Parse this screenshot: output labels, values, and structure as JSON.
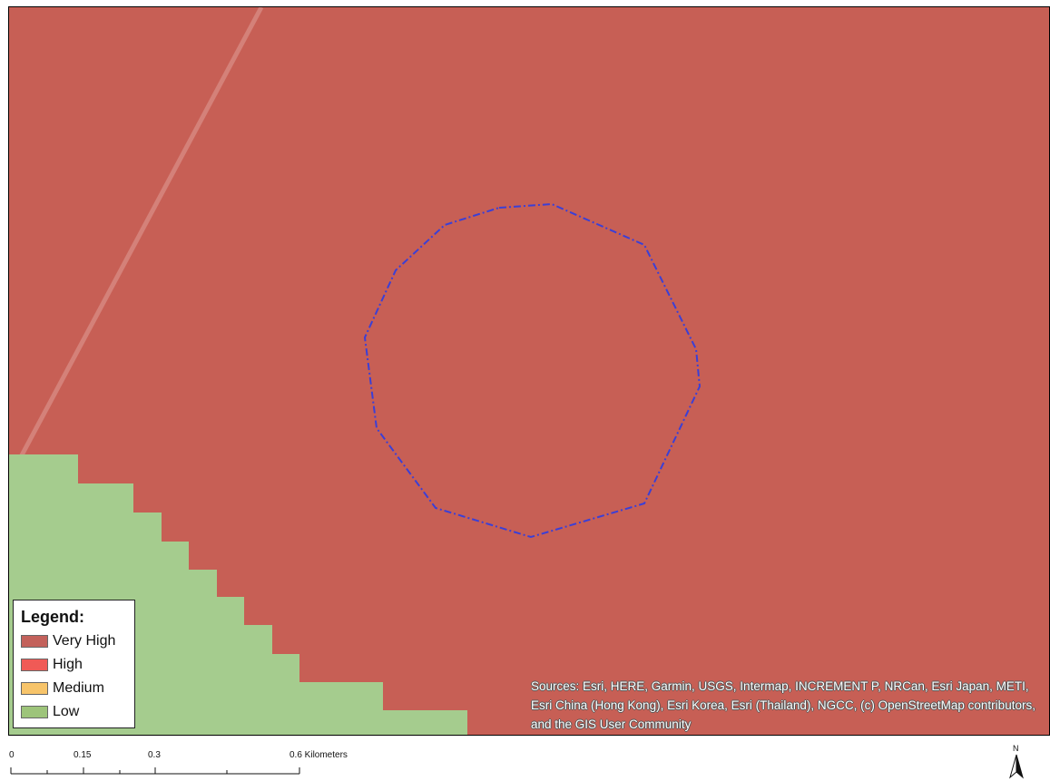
{
  "map": {
    "colors": {
      "very_high": "#c75f55",
      "low": "#a5cc8e",
      "boundary": "#3b3fd6",
      "road": "#d88a82"
    }
  },
  "legend": {
    "title": "Legend:",
    "items": [
      {
        "label": "Very High",
        "color": "#c3615b"
      },
      {
        "label": "High",
        "color": "#f05a56"
      },
      {
        "label": "Medium",
        "color": "#f7c46a"
      },
      {
        "label": "Low",
        "color": "#9dc47a"
      }
    ]
  },
  "credits": {
    "text": "Sources: Esri, HERE, Garmin, USGS, Intermap, INCREMENT P, NRCan, Esri Japan, METI, Esri China (Hong Kong), Esri Korea, Esri (Thailand), NGCC, (c) OpenStreetMap contributors, and the GIS User Community"
  },
  "scale_bar": {
    "ticks": [
      "0",
      "0.15",
      "0.3",
      "0.6 Kilometers"
    ]
  },
  "north_arrow": {
    "label": "N",
    "icon": "north-arrow-icon"
  }
}
